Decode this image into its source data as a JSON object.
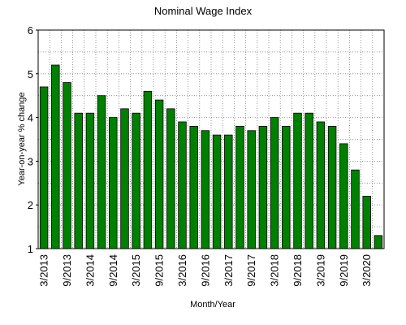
{
  "chart_data": {
    "type": "bar",
    "title": "Nominal Wage Index",
    "xlabel": "Month/Year",
    "ylabel": "Year-on-year % change",
    "ylim": [
      1,
      6
    ],
    "yticks": [
      1,
      2,
      3,
      4,
      5,
      6
    ],
    "grid": true,
    "bar_color": "#008000",
    "categories": [
      "3/2013",
      "6/2013",
      "9/2013",
      "12/2013",
      "3/2014",
      "6/2014",
      "9/2014",
      "12/2014",
      "3/2015",
      "6/2015",
      "9/2015",
      "12/2015",
      "3/2016",
      "6/2016",
      "9/2016",
      "12/2016",
      "3/2017",
      "6/2017",
      "9/2017",
      "12/2017",
      "3/2018",
      "6/2018",
      "9/2018",
      "12/2018",
      "3/2019",
      "6/2019",
      "9/2019",
      "12/2019",
      "3/2020",
      "6/2020"
    ],
    "tick_categories": [
      "3/2013",
      "9/2013",
      "3/2014",
      "9/2014",
      "3/2015",
      "9/2015",
      "3/2016",
      "9/2016",
      "3/2017",
      "9/2017",
      "3/2018",
      "9/2018",
      "3/2019",
      "9/2019",
      "3/2020"
    ],
    "values": [
      4.7,
      5.2,
      4.8,
      4.1,
      4.1,
      4.5,
      4.0,
      4.2,
      4.1,
      4.6,
      4.4,
      4.2,
      3.9,
      3.8,
      3.7,
      3.6,
      3.6,
      3.8,
      3.7,
      3.8,
      4.0,
      3.8,
      4.1,
      4.1,
      3.9,
      3.8,
      3.4,
      2.8,
      2.2,
      1.3
    ]
  }
}
